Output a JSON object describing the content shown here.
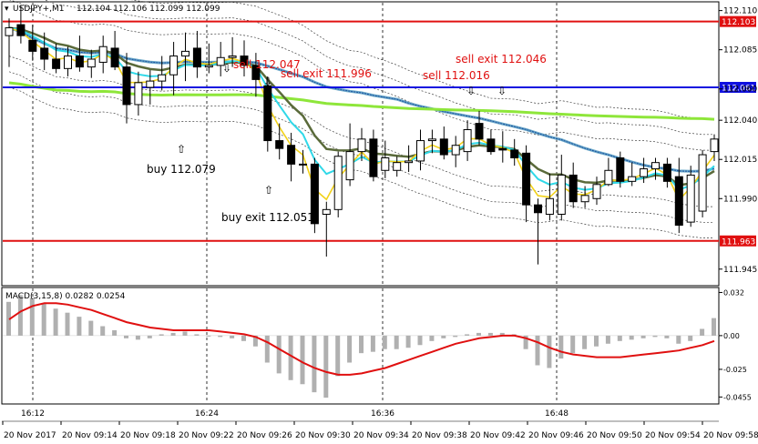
{
  "header": {
    "symbol": "USDJPY+,M1",
    "ohlc": "112.104 112.106 112.099 112.099"
  },
  "chart_data": [
    {
      "type": "candlestick",
      "symbol": "USDJPY+",
      "timeframe": "M1",
      "ylim": [
        111.935,
        112.115
      ],
      "y_ticks": [
        "112.110",
        "112.085",
        "112.060",
        "112.040",
        "112.015",
        "111.990",
        "111.945"
      ],
      "vgrid_labels": [
        "16:12",
        "16:24",
        "16:36",
        "16:48"
      ],
      "colors": {
        "up": "#ffffff",
        "down": "#000000",
        "outline": "#000000"
      },
      "candles": [
        {
          "o": 112.094,
          "h": 112.105,
          "l": 112.074,
          "c": 112.099
        },
        {
          "o": 112.101,
          "h": 112.113,
          "l": 112.089,
          "c": 112.094
        },
        {
          "o": 112.091,
          "h": 112.101,
          "l": 112.078,
          "c": 112.084
        },
        {
          "o": 112.086,
          "h": 112.096,
          "l": 112.072,
          "c": 112.079
        },
        {
          "o": 112.079,
          "h": 112.089,
          "l": 112.07,
          "c": 112.073
        },
        {
          "o": 112.073,
          "h": 112.087,
          "l": 112.068,
          "c": 112.081
        },
        {
          "o": 112.081,
          "h": 112.094,
          "l": 112.071,
          "c": 112.074
        },
        {
          "o": 112.074,
          "h": 112.085,
          "l": 112.067,
          "c": 112.079
        },
        {
          "o": 112.077,
          "h": 112.094,
          "l": 112.07,
          "c": 112.087
        },
        {
          "o": 112.086,
          "h": 112.097,
          "l": 112.072,
          "c": 112.074
        },
        {
          "o": 112.074,
          "h": 112.083,
          "l": 112.038,
          "c": 112.05
        },
        {
          "o": 112.05,
          "h": 112.071,
          "l": 112.043,
          "c": 112.064
        },
        {
          "o": 112.061,
          "h": 112.072,
          "l": 112.05,
          "c": 112.065
        },
        {
          "o": 112.065,
          "h": 112.081,
          "l": 112.059,
          "c": 112.069
        },
        {
          "o": 112.069,
          "h": 112.09,
          "l": 112.056,
          "c": 112.081
        },
        {
          "o": 112.081,
          "h": 112.096,
          "l": 112.065,
          "c": 112.084
        },
        {
          "o": 112.086,
          "h": 112.097,
          "l": 112.067,
          "c": 112.074
        },
        {
          "o": 112.074,
          "h": 112.089,
          "l": 112.07,
          "c": 112.075
        },
        {
          "o": 112.075,
          "h": 112.09,
          "l": 112.068,
          "c": 112.08
        },
        {
          "o": 112.08,
          "h": 112.093,
          "l": 112.074,
          "c": 112.081
        },
        {
          "o": 112.081,
          "h": 112.091,
          "l": 112.068,
          "c": 112.075
        },
        {
          "o": 112.075,
          "h": 112.083,
          "l": 112.055,
          "c": 112.066
        },
        {
          "o": 112.062,
          "h": 112.068,
          "l": 112.02,
          "c": 112.027
        },
        {
          "o": 112.027,
          "h": 112.038,
          "l": 112.015,
          "c": 112.022
        },
        {
          "o": 112.024,
          "h": 112.032,
          "l": 112.001,
          "c": 112.012
        },
        {
          "o": 112.012,
          "h": 112.021,
          "l": 112.006,
          "c": 112.012
        },
        {
          "o": 112.012,
          "h": 112.016,
          "l": 111.968,
          "c": 111.974
        },
        {
          "o": 111.98,
          "h": 111.988,
          "l": 111.953,
          "c": 111.983
        },
        {
          "o": 111.983,
          "h": 112.02,
          "l": 111.978,
          "c": 112.017
        },
        {
          "o": 112.002,
          "h": 112.038,
          "l": 111.998,
          "c": 112.02
        },
        {
          "o": 112.02,
          "h": 112.035,
          "l": 112.014,
          "c": 112.028
        },
        {
          "o": 112.028,
          "h": 112.034,
          "l": 112.001,
          "c": 112.004
        },
        {
          "o": 112.008,
          "h": 112.027,
          "l": 112.003,
          "c": 112.016
        },
        {
          "o": 112.008,
          "h": 112.017,
          "l": 112.004,
          "c": 112.013
        },
        {
          "o": 112.013,
          "h": 112.024,
          "l": 112.007,
          "c": 112.014
        },
        {
          "o": 112.014,
          "h": 112.034,
          "l": 112.008,
          "c": 112.027
        },
        {
          "o": 112.027,
          "h": 112.034,
          "l": 112.019,
          "c": 112.028
        },
        {
          "o": 112.028,
          "h": 112.036,
          "l": 112.015,
          "c": 112.018
        },
        {
          "o": 112.018,
          "h": 112.03,
          "l": 112.01,
          "c": 112.024
        },
        {
          "o": 112.02,
          "h": 112.04,
          "l": 112.014,
          "c": 112.034
        },
        {
          "o": 112.038,
          "h": 112.046,
          "l": 112.024,
          "c": 112.028
        },
        {
          "o": 112.028,
          "h": 112.034,
          "l": 112.018,
          "c": 112.02
        },
        {
          "o": 112.022,
          "h": 112.033,
          "l": 112.013,
          "c": 112.021
        },
        {
          "o": 112.021,
          "h": 112.028,
          "l": 112.011,
          "c": 112.016
        },
        {
          "o": 112.019,
          "h": 112.024,
          "l": 111.975,
          "c": 111.986
        },
        {
          "o": 111.986,
          "h": 111.99,
          "l": 111.948,
          "c": 111.981
        },
        {
          "o": 111.98,
          "h": 112.006,
          "l": 111.976,
          "c": 111.99
        },
        {
          "o": 111.98,
          "h": 112.018,
          "l": 111.976,
          "c": 112.005
        },
        {
          "o": 112.005,
          "h": 112.013,
          "l": 111.984,
          "c": 111.988
        },
        {
          "o": 111.988,
          "h": 111.998,
          "l": 111.984,
          "c": 111.992
        },
        {
          "o": 111.99,
          "h": 112.004,
          "l": 111.986,
          "c": 111.999
        },
        {
          "o": 111.999,
          "h": 112.016,
          "l": 111.998,
          "c": 112.008
        },
        {
          "o": 112.016,
          "h": 112.02,
          "l": 111.997,
          "c": 112.001
        },
        {
          "o": 112.001,
          "h": 112.013,
          "l": 111.998,
          "c": 112.004
        },
        {
          "o": 112.004,
          "h": 112.016,
          "l": 112.0,
          "c": 112.009
        },
        {
          "o": 112.009,
          "h": 112.016,
          "l": 112.002,
          "c": 112.013
        },
        {
          "o": 112.012,
          "h": 112.016,
          "l": 111.997,
          "c": 112.001
        },
        {
          "o": 112.004,
          "h": 112.016,
          "l": 111.968,
          "c": 111.973
        },
        {
          "o": 111.975,
          "h": 112.011,
          "l": 111.972,
          "c": 112.005
        },
        {
          "o": 111.982,
          "h": 112.021,
          "l": 111.978,
          "c": 112.018
        },
        {
          "o": 112.02,
          "h": 112.031,
          "l": 112.014,
          "c": 112.028
        }
      ],
      "levels": [
        {
          "price": 112.103,
          "label": "112.103",
          "color": "#e01010"
        },
        {
          "price": 112.061,
          "label": "112.061",
          "color": "#1010e0"
        },
        {
          "price": 111.963,
          "label": "111.963",
          "color": "#e01010"
        }
      ],
      "annotations": [
        {
          "text": "sell 112.047",
          "color": "red",
          "arrow": "down"
        },
        {
          "text": "sell exit 111.996",
          "color": "red",
          "arrow": "down"
        },
        {
          "text": "sell 112.016",
          "color": "red",
          "arrow": "down"
        },
        {
          "text": "sell exit 112.046",
          "color": "red",
          "arrow": "down"
        },
        {
          "text": "buy 112.079",
          "color": "black",
          "arrow": "up"
        },
        {
          "text": "buy exit 112.051",
          "color": "black",
          "arrow": "up"
        }
      ],
      "grid": true
    },
    {
      "type": "histogram+line",
      "title": "MACD(3,15,8) 0.0282 0.0254",
      "ylim": [
        -0.05,
        0.035
      ],
      "y_ticks": [
        "0.032",
        "0.00",
        "-0.025",
        "-0.0455"
      ],
      "histogram": [
        0.025,
        0.03,
        0.028,
        0.024,
        0.02,
        0.017,
        0.014,
        0.011,
        0.007,
        0.004,
        -0.002,
        -0.003,
        -0.002,
        0.001,
        0.002,
        0.003,
        0.001,
        0.0,
        -0.001,
        -0.002,
        -0.004,
        -0.008,
        -0.02,
        -0.028,
        -0.033,
        -0.036,
        -0.042,
        -0.046,
        -0.03,
        -0.02,
        -0.013,
        -0.012,
        -0.01,
        -0.01,
        -0.009,
        -0.007,
        -0.004,
        -0.002,
        -0.001,
        0.001,
        0.002,
        0.002,
        0.002,
        0.001,
        -0.01,
        -0.022,
        -0.024,
        -0.017,
        -0.013,
        -0.01,
        -0.008,
        -0.006,
        -0.004,
        -0.003,
        -0.002,
        -0.001,
        -0.002,
        -0.006,
        -0.004,
        0.005,
        0.013
      ],
      "signal": [
        0.012,
        0.018,
        0.022,
        0.024,
        0.024,
        0.023,
        0.021,
        0.019,
        0.016,
        0.013,
        0.01,
        0.008,
        0.006,
        0.005,
        0.004,
        0.004,
        0.004,
        0.004,
        0.003,
        0.002,
        0.001,
        -0.001,
        -0.005,
        -0.01,
        -0.015,
        -0.02,
        -0.024,
        -0.027,
        -0.029,
        -0.029,
        -0.028,
        -0.026,
        -0.024,
        -0.021,
        -0.018,
        -0.015,
        -0.012,
        -0.009,
        -0.006,
        -0.004,
        -0.002,
        -0.001,
        0.0,
        0.0,
        -0.002,
        -0.005,
        -0.009,
        -0.012,
        -0.014,
        -0.015,
        -0.016,
        -0.016,
        -0.016,
        -0.015,
        -0.014,
        -0.013,
        -0.012,
        -0.011,
        -0.009,
        -0.007,
        -0.004
      ],
      "colors": {
        "hist": "#b0b0b0",
        "signal": "#e01010"
      }
    }
  ],
  "time_axis": {
    "labels": [
      "20 Nov 2017",
      "20 Nov 09:14",
      "20 Nov 09:18",
      "20 Nov 09:22",
      "20 Nov 09:26",
      "20 Nov 09:30",
      "20 Nov 09:34",
      "20 Nov 09:38",
      "20 Nov 09:42",
      "20 Nov 09:46",
      "20 Nov 09:50",
      "20 Nov 09:54",
      "20 Nov 09:58"
    ]
  }
}
